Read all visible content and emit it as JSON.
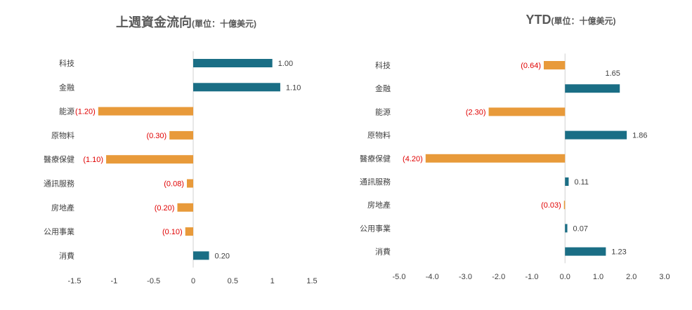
{
  "colors": {
    "positive": "#1a6e85",
    "negative": "#e89a3a",
    "negative_label": "#e00000",
    "text": "#404040"
  },
  "chart_data": [
    {
      "type": "bar",
      "orientation": "horizontal",
      "title": "上週資金流向",
      "subtitle": "(單位：十億美元)",
      "categories": [
        "科技",
        "金融",
        "能源",
        "原物料",
        "醫療保健",
        "通訊服務",
        "房地產",
        "公用事業",
        "消費"
      ],
      "values": [
        1.0,
        1.1,
        -1.2,
        -0.3,
        -1.1,
        -0.08,
        -0.2,
        -0.1,
        0.2
      ],
      "value_labels": [
        "1.00",
        "1.10",
        "(1.20)",
        "(0.30)",
        "(1.10)",
        "(0.08)",
        "(0.20)",
        "(0.10)",
        "0.20"
      ],
      "xlim": [
        -1.5,
        1.5
      ],
      "xticks": [
        -1.5,
        -1,
        -0.5,
        0,
        0.5,
        1,
        1.5
      ],
      "xtick_labels": [
        "-1.5",
        "-1",
        "-0.5",
        "0",
        "0.5",
        "1",
        "1.5"
      ],
      "grid": false
    },
    {
      "type": "bar",
      "orientation": "horizontal",
      "title": "YTD",
      "subtitle": "(單位：十億美元)",
      "categories": [
        "科技",
        "金融",
        "能源",
        "原物料",
        "醫療保健",
        "通訊服務",
        "房地產",
        "公用事業",
        "消費"
      ],
      "values": [
        -0.64,
        1.65,
        -2.3,
        1.86,
        -4.2,
        0.11,
        -0.03,
        0.07,
        1.23
      ],
      "value_labels": [
        "(0.64)",
        "1.65",
        "(2.30)",
        "1.86",
        "(4.20)",
        "0.11",
        "(0.03)",
        "0.07",
        "1.23"
      ],
      "xlim": [
        -5.0,
        3.0
      ],
      "xticks": [
        -5,
        -4,
        -3,
        -2,
        -1,
        0,
        1,
        2,
        3
      ],
      "xtick_labels": [
        "-5.0",
        "-4.0",
        "-3.0",
        "-2.0",
        "-1.0",
        "0.0",
        "1.0",
        "2.0",
        "3.0"
      ],
      "grid": false
    }
  ]
}
